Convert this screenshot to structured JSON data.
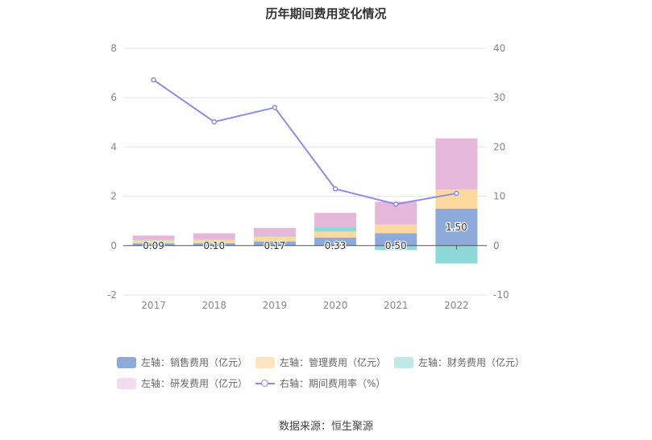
{
  "chart_data": {
    "type": "bar",
    "title": "历年期间费用变化情况",
    "categories": [
      "2017",
      "2018",
      "2019",
      "2020",
      "2021",
      "2022"
    ],
    "left_axis": {
      "ylim": [
        -2,
        8
      ],
      "ticks": [
        "8",
        "6",
        "4",
        "2",
        "0",
        "-2"
      ]
    },
    "right_axis": {
      "ylim": [
        -10,
        40
      ],
      "ticks": [
        "40",
        "30",
        "20",
        "10",
        "0",
        "-10"
      ]
    },
    "stacked": true,
    "series": [
      {
        "name": "左轴：销售费用（亿元）",
        "axis": "left",
        "type": "bar",
        "color": "#8eaadb",
        "values": [
          0.09,
          0.1,
          0.17,
          0.33,
          0.5,
          1.5
        ],
        "labels": [
          "0.09",
          "0.10",
          "0.17",
          "0.33",
          "0.50",
          "1.50"
        ]
      },
      {
        "name": "左轴：管理费用（亿元）",
        "axis": "left",
        "type": "bar",
        "color": "#fdd89f",
        "values": [
          0.12,
          0.14,
          0.2,
          0.24,
          0.35,
          0.77
        ]
      },
      {
        "name": "左轴：财务费用（亿元）",
        "axis": "left",
        "type": "bar",
        "color": "#8ed9d8",
        "values": [
          0.02,
          0.02,
          0.03,
          0.18,
          -0.18,
          -0.72
        ]
      },
      {
        "name": "左轴：研发费用（亿元）",
        "axis": "left",
        "type": "bar",
        "color": "#e5b8da",
        "values": [
          0.18,
          0.24,
          0.32,
          0.58,
          0.93,
          2.08
        ]
      },
      {
        "name": "右轴：期间费用率（%）",
        "axis": "right",
        "type": "line",
        "color": "#8b8be8",
        "values": [
          33.6,
          25.1,
          28.0,
          11.5,
          8.4,
          10.6
        ]
      }
    ],
    "legend_position": "bottom",
    "grid": true
  },
  "source": "数据来源：恒生聚源"
}
